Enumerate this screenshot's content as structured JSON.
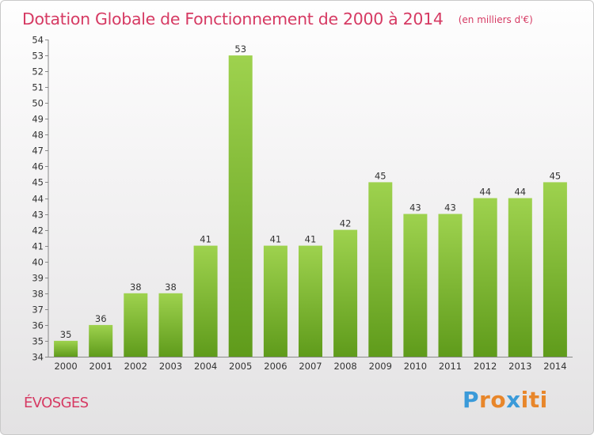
{
  "chart_data": {
    "type": "bar",
    "title": "Dotation Globale de Fonctionnement de 2000 à 2014",
    "subtitle": "(en milliers d'€)",
    "categories": [
      "2000",
      "2001",
      "2002",
      "2003",
      "2004",
      "2005",
      "2006",
      "2007",
      "2008",
      "2009",
      "2010",
      "2011",
      "2012",
      "2013",
      "2014"
    ],
    "values": [
      35,
      36,
      38,
      38,
      41,
      53,
      41,
      41,
      42,
      45,
      43,
      43,
      44,
      44,
      45
    ],
    "ylim": [
      34,
      54
    ],
    "yticks": [
      34,
      35,
      36,
      37,
      38,
      39,
      40,
      41,
      42,
      43,
      44,
      45,
      46,
      47,
      48,
      49,
      50,
      51,
      52,
      53,
      54
    ],
    "grid": false,
    "legend": "none",
    "bar_color_top": "#9ed24e",
    "bar_color_bottom": "#5f9b1b"
  },
  "commune": "ÉVOSGES",
  "logo": {
    "text": "Proxiti",
    "letter_colors": [
      "#3a9ad9",
      "#e8862a",
      "#e8862a",
      "#3a9ad9",
      "#e8862a",
      "#e8862a",
      "#e8862a"
    ]
  }
}
